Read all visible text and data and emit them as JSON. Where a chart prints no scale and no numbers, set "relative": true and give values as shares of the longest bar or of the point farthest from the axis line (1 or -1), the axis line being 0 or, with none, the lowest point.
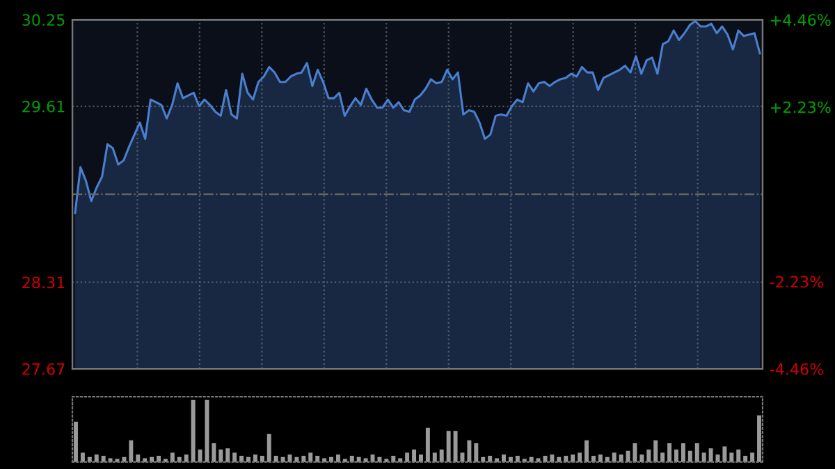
{
  "chart_data": [
    {
      "type": "area",
      "categories": [
        null,
        null,
        null,
        null,
        null,
        null,
        null,
        null,
        null,
        null,
        null,
        null,
        null,
        null,
        null,
        null,
        null,
        null,
        null,
        null,
        null,
        null,
        null,
        null,
        null,
        null,
        null,
        null,
        null,
        null,
        null,
        null,
        null,
        null,
        null,
        null,
        null,
        null,
        null,
        null,
        null,
        null,
        null,
        null,
        null,
        null,
        null,
        null,
        null,
        null,
        null,
        null,
        null,
        null,
        null,
        null,
        null,
        null,
        null,
        null,
        null,
        null,
        null,
        null,
        null,
        null,
        null,
        null,
        null,
        null,
        null,
        null,
        null,
        null,
        null,
        null,
        null,
        null,
        null,
        null,
        null,
        null,
        null,
        null,
        null,
        null,
        null,
        null,
        null,
        null,
        null,
        null,
        null,
        null,
        null,
        null,
        null,
        null,
        null,
        null,
        null,
        null,
        null,
        null,
        null,
        null,
        null,
        null,
        null,
        null,
        null,
        null,
        null,
        null,
        null,
        null,
        null,
        null,
        null,
        null,
        null,
        null,
        null,
        null,
        null,
        null,
        null,
        null
      ],
      "series": [
        {
          "color": "#4a7fd0",
          "values": [
            28.82,
            29.16,
            29.06,
            28.91,
            29.01,
            29.09,
            29.33,
            29.3,
            29.18,
            29.21,
            29.31,
            29.4,
            29.49,
            29.37,
            29.66,
            29.64,
            29.62,
            29.52,
            29.62,
            29.78,
            29.67,
            29.69,
            29.71,
            29.61,
            29.66,
            29.62,
            29.57,
            29.54,
            29.73,
            29.55,
            29.52,
            29.85,
            29.71,
            29.66,
            29.79,
            29.83,
            29.9,
            29.86,
            29.79,
            29.79,
            29.83,
            29.85,
            29.86,
            29.93,
            29.76,
            29.88,
            29.79,
            29.67,
            29.67,
            29.71,
            29.54,
            29.61,
            29.67,
            29.62,
            29.74,
            29.66,
            29.6,
            29.6,
            29.66,
            29.6,
            29.64,
            29.58,
            29.57,
            29.66,
            29.69,
            29.74,
            29.81,
            29.78,
            29.79,
            29.88,
            29.81,
            29.86,
            29.55,
            29.58,
            29.57,
            29.49,
            29.37,
            29.4,
            29.54,
            29.55,
            29.54,
            29.61,
            29.66,
            29.64,
            29.78,
            29.72,
            29.78,
            29.79,
            29.76,
            29.79,
            29.81,
            29.82,
            29.85,
            29.83,
            29.9,
            29.86,
            29.86,
            29.73,
            29.82,
            29.84,
            29.86,
            29.88,
            29.91,
            29.86,
            29.98,
            29.85,
            29.95,
            29.97,
            29.85,
            30.07,
            30.09,
            30.17,
            30.1,
            30.15,
            30.21,
            30.24,
            30.2,
            30.2,
            30.22,
            30.15,
            30.2,
            30.14,
            30.03,
            30.17,
            30.13,
            30.14,
            30.15,
            30.0
          ]
        }
      ],
      "ylim": [
        27.67,
        30.25
      ],
      "yticks": [
        27.67,
        28.31,
        29.61,
        30.25
      ],
      "y2lim": [
        -4.46,
        4.46
      ],
      "y2ticks": [
        {
          "value": -4.46,
          "label": "-4.46%"
        },
        {
          "value": -2.23,
          "label": "-2.23%"
        },
        {
          "value": 2.23,
          "label": "+2.23%"
        },
        {
          "value": 4.46,
          "label": "+4.46%"
        }
      ],
      "ref_lines": [
        {
          "axis": "y",
          "value": 28.96,
          "color": "#666666",
          "line_style": "dashdot"
        }
      ],
      "grid": true,
      "tick_labels": "y",
      "legend": false
    },
    {
      "type": "bar",
      "relative": true,
      "tick_labels": false,
      "categories": [
        null,
        null,
        null,
        null,
        null,
        null,
        null,
        null,
        null,
        null,
        null,
        null,
        null,
        null,
        null,
        null,
        null,
        null,
        null,
        null,
        null,
        null,
        null,
        null,
        null,
        null,
        null,
        null,
        null,
        null,
        null,
        null,
        null,
        null,
        null,
        null,
        null,
        null,
        null,
        null,
        null,
        null,
        null,
        null,
        null,
        null,
        null,
        null,
        null,
        null,
        null,
        null,
        null,
        null,
        null,
        null,
        null,
        null,
        null,
        null,
        null,
        null,
        null,
        null,
        null,
        null,
        null,
        null,
        null,
        null,
        null,
        null,
        null,
        null,
        null,
        null,
        null,
        null,
        null,
        null,
        null,
        null,
        null,
        null,
        null,
        null,
        null,
        null,
        null,
        null,
        null,
        null,
        null,
        null,
        null,
        null,
        null,
        null,
        null,
        null
      ],
      "series": [
        {
          "color": "#9a9a9a",
          "values": [
            0.65,
            0.15,
            0.08,
            0.12,
            0.1,
            0.06,
            0.05,
            0.08,
            0.35,
            0.12,
            0.06,
            0.08,
            0.1,
            0.05,
            0.15,
            0.08,
            0.12,
            1,
            0.2,
            1,
            0.3,
            0.2,
            0.22,
            0.15,
            0.1,
            0.08,
            0.12,
            0.1,
            0.45,
            0.1,
            0.08,
            0.12,
            0.08,
            0.1,
            0.15,
            0.1,
            0.06,
            0.08,
            0.12,
            0.05,
            0.1,
            0.08,
            0.06,
            0.12,
            0.08,
            0.05,
            0.1,
            0.06,
            0.15,
            0.2,
            0.12,
            0.55,
            0.15,
            0.2,
            0.5,
            0.5,
            0.15,
            0.35,
            0.3,
            0.08,
            0.1,
            0.06,
            0.12,
            0.08,
            0.1,
            0.05,
            0.08,
            0.06,
            0.1,
            0.12,
            0.08,
            0.1,
            0.12,
            0.15,
            0.35,
            0.1,
            0.12,
            0.08,
            0.15,
            0.12,
            0.18,
            0.3,
            0.12,
            0.2,
            0.35,
            0.15,
            0.3,
            0.2,
            0.3,
            0.18,
            0.3,
            0.15,
            0.22,
            0.12,
            0.25,
            0.15,
            0.2,
            0.1,
            0.15,
            0.75
          ]
        }
      ],
      "grid": false,
      "legend": false
    }
  ]
}
